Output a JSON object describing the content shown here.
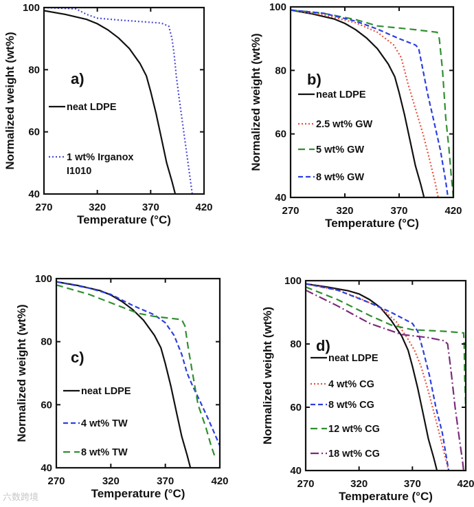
{
  "watermark": "六数跨境",
  "colors": {
    "black": "#111111",
    "irganox": "#4a4ad6",
    "red": "#e8503c",
    "green": "#2f8f2f",
    "blue": "#2b3fe0",
    "purple": "#7b2a7b"
  },
  "chart_data": [
    {
      "type": "line",
      "panel_label": "a)",
      "xlabel": "Temperature (°C)",
      "ylabel": "Normalized weight (wt%)",
      "xlim": [
        270,
        420
      ],
      "ylim": [
        40,
        100
      ],
      "xticks": [
        270,
        320,
        370,
        420
      ],
      "yticks": [
        40,
        60,
        80,
        100
      ],
      "series": [
        {
          "name": "neat LDPE",
          "style": "solid",
          "color": "#111111",
          "x": [
            270,
            290,
            310,
            320,
            330,
            340,
            350,
            360,
            366,
            370,
            375,
            380,
            385,
            390,
            393
          ],
          "y": [
            99,
            97.8,
            96.2,
            94.8,
            92.8,
            90.2,
            86.8,
            82,
            78,
            73,
            66,
            58,
            50,
            44,
            40
          ]
        },
        {
          "name": "1 wt% Irganox\nI1010",
          "style": "dotted",
          "color": "#4a4ad6",
          "x": [
            270,
            300,
            310,
            320,
            340,
            360,
            380,
            387,
            390,
            392,
            394,
            397,
            401,
            405,
            409
          ],
          "y": [
            100,
            99.6,
            97.8,
            96.6,
            96,
            95.5,
            95,
            94,
            90,
            85,
            78,
            70,
            60,
            50,
            40
          ]
        }
      ]
    },
    {
      "type": "line",
      "panel_label": "b)",
      "xlabel": "Temperature (°C)",
      "ylabel": "Normalized weight (wt%)",
      "xlim": [
        270,
        420
      ],
      "ylim": [
        40,
        100
      ],
      "xticks": [
        270,
        320,
        370,
        420
      ],
      "yticks": [
        40,
        60,
        80,
        100
      ],
      "series": [
        {
          "name": "neat LDPE",
          "style": "solid",
          "color": "#111111",
          "x": [
            270,
            290,
            310,
            320,
            330,
            340,
            350,
            360,
            366,
            370,
            375,
            380,
            385,
            390,
            393
          ],
          "y": [
            99,
            97.8,
            96.2,
            94.8,
            92.8,
            90.2,
            86.8,
            82,
            78,
            73,
            66,
            58,
            50,
            44,
            40
          ]
        },
        {
          "name": "2.5 wt% GW",
          "style": "dotted",
          "color": "#e8503c",
          "x": [
            270,
            300,
            330,
            350,
            365,
            372,
            378,
            385,
            392,
            398,
            403,
            406
          ],
          "y": [
            99,
            97.5,
            95,
            92,
            88,
            84,
            76,
            68,
            60,
            52,
            45,
            40
          ]
        },
        {
          "name": "5 wt% GW",
          "style": "dashed-long",
          "color": "#2f8f2f",
          "x": [
            270,
            300,
            330,
            350,
            380,
            405,
            407,
            410,
            413,
            416,
            418,
            420
          ],
          "y": [
            99,
            98,
            96,
            94,
            93,
            92,
            90,
            80,
            65,
            55,
            47,
            40
          ]
        },
        {
          "name": "8 wt% GW",
          "style": "dashed",
          "color": "#2b3fe0",
          "x": [
            270,
            300,
            330,
            350,
            370,
            385,
            388,
            392,
            396,
            402,
            408,
            413,
            415
          ],
          "y": [
            99,
            98,
            95.5,
            93,
            90,
            88,
            87,
            80,
            73,
            64,
            55,
            45,
            40
          ]
        }
      ]
    },
    {
      "type": "line",
      "panel_label": "c)",
      "xlabel": "Temperature (°C)",
      "ylabel": "Normalized weight (wt%)",
      "xlim": [
        270,
        420
      ],
      "ylim": [
        40,
        100
      ],
      "xticks": [
        270,
        320,
        370,
        420
      ],
      "yticks": [
        40,
        60,
        80,
        100
      ],
      "series": [
        {
          "name": "neat LDPE",
          "style": "solid",
          "color": "#111111",
          "x": [
            270,
            290,
            310,
            320,
            330,
            340,
            350,
            360,
            366,
            370,
            375,
            380,
            385,
            390,
            393
          ],
          "y": [
            99,
            97.8,
            96.2,
            94.8,
            92.8,
            90.2,
            86.8,
            82,
            78,
            73,
            66,
            58,
            50,
            44,
            40
          ]
        },
        {
          "name": "4 wt% TW",
          "style": "dashed",
          "color": "#2b3fe0",
          "x": [
            270,
            300,
            320,
            340,
            360,
            370,
            378,
            385,
            390,
            395,
            402,
            410,
            420
          ],
          "y": [
            99,
            97,
            95,
            91.5,
            88.5,
            86,
            82,
            76,
            70,
            66,
            61,
            55,
            47
          ]
        },
        {
          "name": "8 wt% TW",
          "style": "dashed-long",
          "color": "#2f8f2f",
          "x": [
            270,
            280,
            300,
            330,
            345,
            360,
            385,
            388,
            391,
            395,
            400,
            407,
            412,
            416
          ],
          "y": [
            98,
            97,
            95,
            91,
            89,
            88,
            87,
            85,
            78,
            70,
            60,
            53,
            47,
            43
          ]
        }
      ]
    },
    {
      "type": "line",
      "panel_label": "d)",
      "xlabel": "Temperature (°C)",
      "ylabel": "Normalized weight  (wt%)",
      "xlim": [
        270,
        420
      ],
      "ylim": [
        40,
        100
      ],
      "xticks": [
        270,
        320,
        370,
        420
      ],
      "yticks": [
        40,
        60,
        80,
        100
      ],
      "series": [
        {
          "name": "neat LDPE",
          "style": "solid",
          "color": "#111111",
          "x": [
            270,
            290,
            310,
            320,
            330,
            340,
            350,
            360,
            366,
            370,
            375,
            380,
            385,
            390,
            393
          ],
          "y": [
            99,
            98,
            96.8,
            95.8,
            94,
            91.5,
            87.5,
            82.5,
            78,
            73,
            66,
            58,
            50,
            44,
            40
          ]
        },
        {
          "name": "4 wt% CG",
          "style": "dotted",
          "color": "#e8503c",
          "x": [
            270,
            300,
            320,
            340,
            355,
            365,
            372,
            378,
            385,
            392,
            398,
            404
          ],
          "y": [
            99,
            97,
            94.5,
            91.5,
            87,
            82,
            78,
            73,
            65,
            56,
            48,
            40
          ]
        },
        {
          "name": "8 wt% CG",
          "style": "dashed",
          "color": "#2b3fe0",
          "x": [
            270,
            300,
            330,
            350,
            370,
            375,
            380,
            386,
            392,
            398,
            402,
            404
          ],
          "y": [
            99,
            97,
            93,
            90,
            86.5,
            84,
            78,
            70,
            60,
            52,
            44,
            40
          ]
        },
        {
          "name": "12 wt% CG",
          "style": "dashed-long",
          "color": "#2f8f2f",
          "x": [
            270,
            300,
            330,
            350,
            370,
            400,
            418,
            418.5,
            419,
            420
          ],
          "y": [
            98,
            94,
            89,
            86,
            84.5,
            84,
            83.5,
            80,
            70,
            60
          ]
        },
        {
          "name": "18 wt% CG",
          "style": "dashdot",
          "color": "#7b2a7b",
          "x": [
            270,
            300,
            330,
            360,
            385,
            400,
            403,
            406,
            410,
            414,
            417,
            418
          ],
          "y": [
            97,
            92,
            86.5,
            83,
            82,
            81,
            80,
            72,
            60,
            50,
            43,
            40
          ]
        }
      ]
    }
  ]
}
